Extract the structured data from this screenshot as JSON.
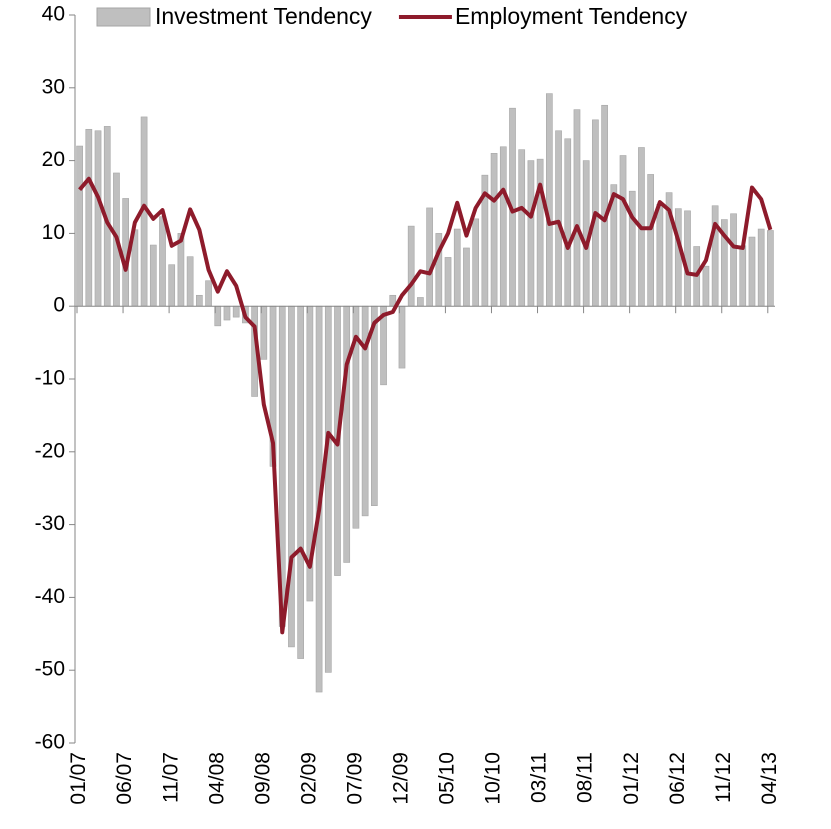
{
  "chart_data": {
    "type": "combo",
    "categories": [
      "01/07",
      null,
      null,
      null,
      null,
      "06/07",
      null,
      null,
      null,
      null,
      "11/07",
      null,
      null,
      null,
      null,
      "04/08",
      null,
      null,
      null,
      null,
      "09/08",
      null,
      null,
      null,
      null,
      "02/09",
      null,
      null,
      null,
      null,
      "07/09",
      null,
      null,
      null,
      null,
      "12/09",
      null,
      null,
      null,
      null,
      "05/10",
      null,
      null,
      null,
      null,
      "10/10",
      null,
      null,
      null,
      null,
      "03/11",
      null,
      null,
      null,
      null,
      "08/11",
      null,
      null,
      null,
      null,
      "01/12",
      null,
      null,
      null,
      null,
      "06/12",
      null,
      null,
      null,
      null,
      "11/12",
      null,
      null,
      null,
      null,
      "04/13"
    ],
    "series": [
      {
        "name": "Investment Tendency",
        "type": "bar",
        "color": "#bfbfbf",
        "values": [
          22,
          24.3,
          24.1,
          24.7,
          18.3,
          14.8,
          10.5,
          26,
          8.4,
          12.3,
          5.7,
          10,
          6.8,
          1.5,
          3.5,
          -2.7,
          -1.9,
          -1.5,
          -2.3,
          -12.4,
          -7.3,
          -22,
          -44,
          -46.8,
          -48.4,
          -40.5,
          -53,
          -50.3,
          -37,
          -35.2,
          -30.5,
          -28.8,
          -27.4,
          -10.8,
          1.5,
          -8.5,
          11,
          1.2,
          13.5,
          10,
          6.7,
          10.6,
          8,
          12,
          18,
          21,
          21.9,
          27.2,
          21.5,
          20,
          20.2,
          29.2,
          24.1,
          23,
          27,
          20,
          25.6,
          27.6,
          16.7,
          20.7,
          15.8,
          21.8,
          18.1,
          14,
          15.6,
          13.4,
          13.1,
          8.2,
          5.5,
          13.8,
          11.9,
          12.7,
          8.3,
          9.5,
          10.6,
          10.4
        ]
      },
      {
        "name": "Employment Tendency",
        "type": "line",
        "color": "#8e1b2b",
        "values": [
          16,
          17.5,
          15,
          11.5,
          9.5,
          5,
          11.5,
          13.8,
          12,
          13.2,
          8.3,
          9,
          13.3,
          10.5,
          5,
          2,
          4.8,
          2.8,
          -1.5,
          -2.8,
          -13.5,
          -18.8,
          -44.8,
          -34.5,
          -33.3,
          -35.8,
          -28,
          -17.4,
          -19,
          -8,
          -4.2,
          -5.8,
          -2.3,
          -1.2,
          -0.8,
          1.5,
          3,
          4.8,
          4.5,
          7.5,
          10,
          14.2,
          9.7,
          13.5,
          15.5,
          14.5,
          16,
          13,
          13.5,
          12.3,
          16.7,
          11.3,
          11.6,
          8,
          11,
          8,
          12.8,
          11.8,
          15.4,
          14.7,
          12.2,
          10.7,
          10.7,
          14.3,
          13.2,
          9,
          4.5,
          4.3,
          6.3,
          11.3,
          9.7,
          8.2,
          8,
          16.3,
          14.7,
          10.5
        ]
      }
    ],
    "ylim": [
      -60,
      40
    ],
    "yticks": [
      -60,
      -50,
      -40,
      -30,
      -20,
      -10,
      0,
      10,
      20,
      30,
      40
    ],
    "grid": false,
    "legend": "top"
  }
}
